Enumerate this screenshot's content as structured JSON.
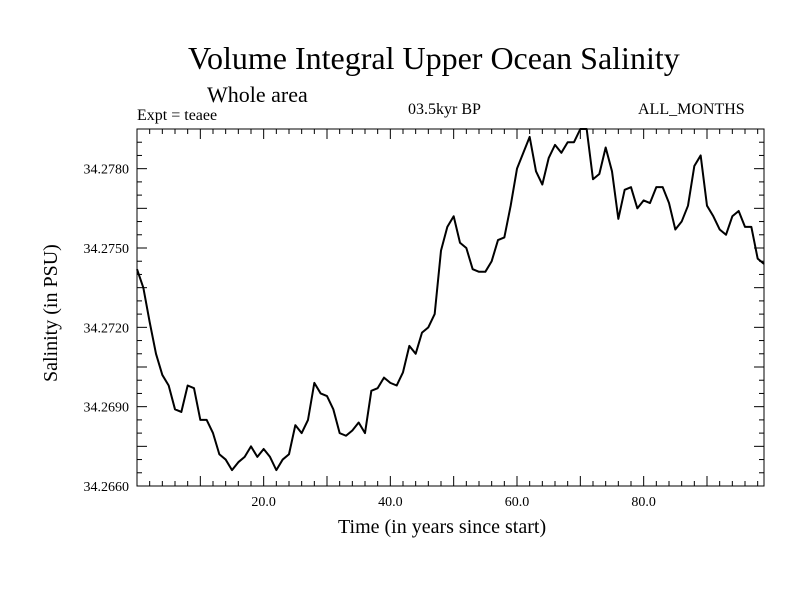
{
  "chart_data": {
    "type": "line",
    "title": "Volume Integral Upper Ocean Salinity",
    "subtitle": "Whole area",
    "experiment": "Expt = teaee",
    "period": "03.5kyr BP",
    "months": "ALL_MONTHS",
    "xlabel": "Time (in years since start)",
    "ylabel": "Salinity (in PSU)",
    "xlim": [
      0,
      99
    ],
    "ylim": [
      34.266,
      34.2795
    ],
    "x_ticks": [
      20,
      40,
      60,
      80
    ],
    "x_tick_labels": [
      "20.0",
      "40.0",
      "60.0",
      "80.0"
    ],
    "y_ticks": [
      34.266,
      34.269,
      34.272,
      34.275,
      34.278
    ],
    "y_tick_labels": [
      "34.2660",
      "34.2690",
      "34.2720",
      "34.2750",
      "34.2780"
    ],
    "series": [
      {
        "name": "Salinity",
        "color": "#000000",
        "x": [
          0,
          1,
          2,
          3,
          4,
          5,
          6,
          7,
          8,
          9,
          10,
          11,
          12,
          13,
          14,
          15,
          16,
          17,
          18,
          19,
          20,
          21,
          22,
          23,
          24,
          25,
          26,
          27,
          28,
          29,
          30,
          31,
          32,
          33,
          34,
          35,
          36,
          37,
          38,
          39,
          40,
          41,
          42,
          43,
          44,
          45,
          46,
          47,
          48,
          49,
          50,
          51,
          52,
          53,
          54,
          55,
          56,
          57,
          58,
          59,
          60,
          61,
          62,
          63,
          64,
          65,
          66,
          67,
          68,
          69,
          70,
          71,
          72,
          73,
          74,
          75,
          76,
          77,
          78,
          79,
          80,
          81,
          82,
          83,
          84,
          85,
          86,
          87,
          88,
          89,
          90,
          91,
          92,
          93,
          94,
          95,
          96,
          97,
          98,
          99
        ],
        "values": [
          34.2742,
          34.2735,
          34.2722,
          34.271,
          34.2702,
          34.2698,
          34.2689,
          34.2688,
          34.2698,
          34.2697,
          34.2685,
          34.2685,
          34.268,
          34.2672,
          34.267,
          34.2666,
          34.2669,
          34.2671,
          34.2675,
          34.2671,
          34.2674,
          34.2671,
          34.2666,
          34.267,
          34.2672,
          34.2683,
          34.268,
          34.2685,
          34.2699,
          34.2695,
          34.2694,
          34.2689,
          34.268,
          34.2679,
          34.2681,
          34.2684,
          34.268,
          34.2696,
          34.2697,
          34.2701,
          34.2699,
          34.2698,
          34.2703,
          34.2713,
          34.271,
          34.2718,
          34.272,
          34.2725,
          34.2749,
          34.2758,
          34.2762,
          34.2752,
          34.275,
          34.2742,
          34.2741,
          34.2741,
          34.2745,
          34.2753,
          34.2754,
          34.2766,
          34.278,
          34.2786,
          34.2792,
          34.2779,
          34.2774,
          34.2784,
          34.2789,
          34.2786,
          34.279,
          34.279,
          34.2795,
          34.2795,
          34.2776,
          34.2778,
          34.2788,
          34.2779,
          34.2761,
          34.2772,
          34.2773,
          34.2765,
          34.2768,
          34.2767,
          34.2773,
          34.2773,
          34.2767,
          34.2757,
          34.276,
          34.2766,
          34.2781,
          34.2785,
          34.2766,
          34.2762,
          34.2757,
          34.2755,
          34.2762,
          34.2764,
          34.2758,
          34.2758,
          34.2746,
          34.2744
        ]
      }
    ]
  }
}
